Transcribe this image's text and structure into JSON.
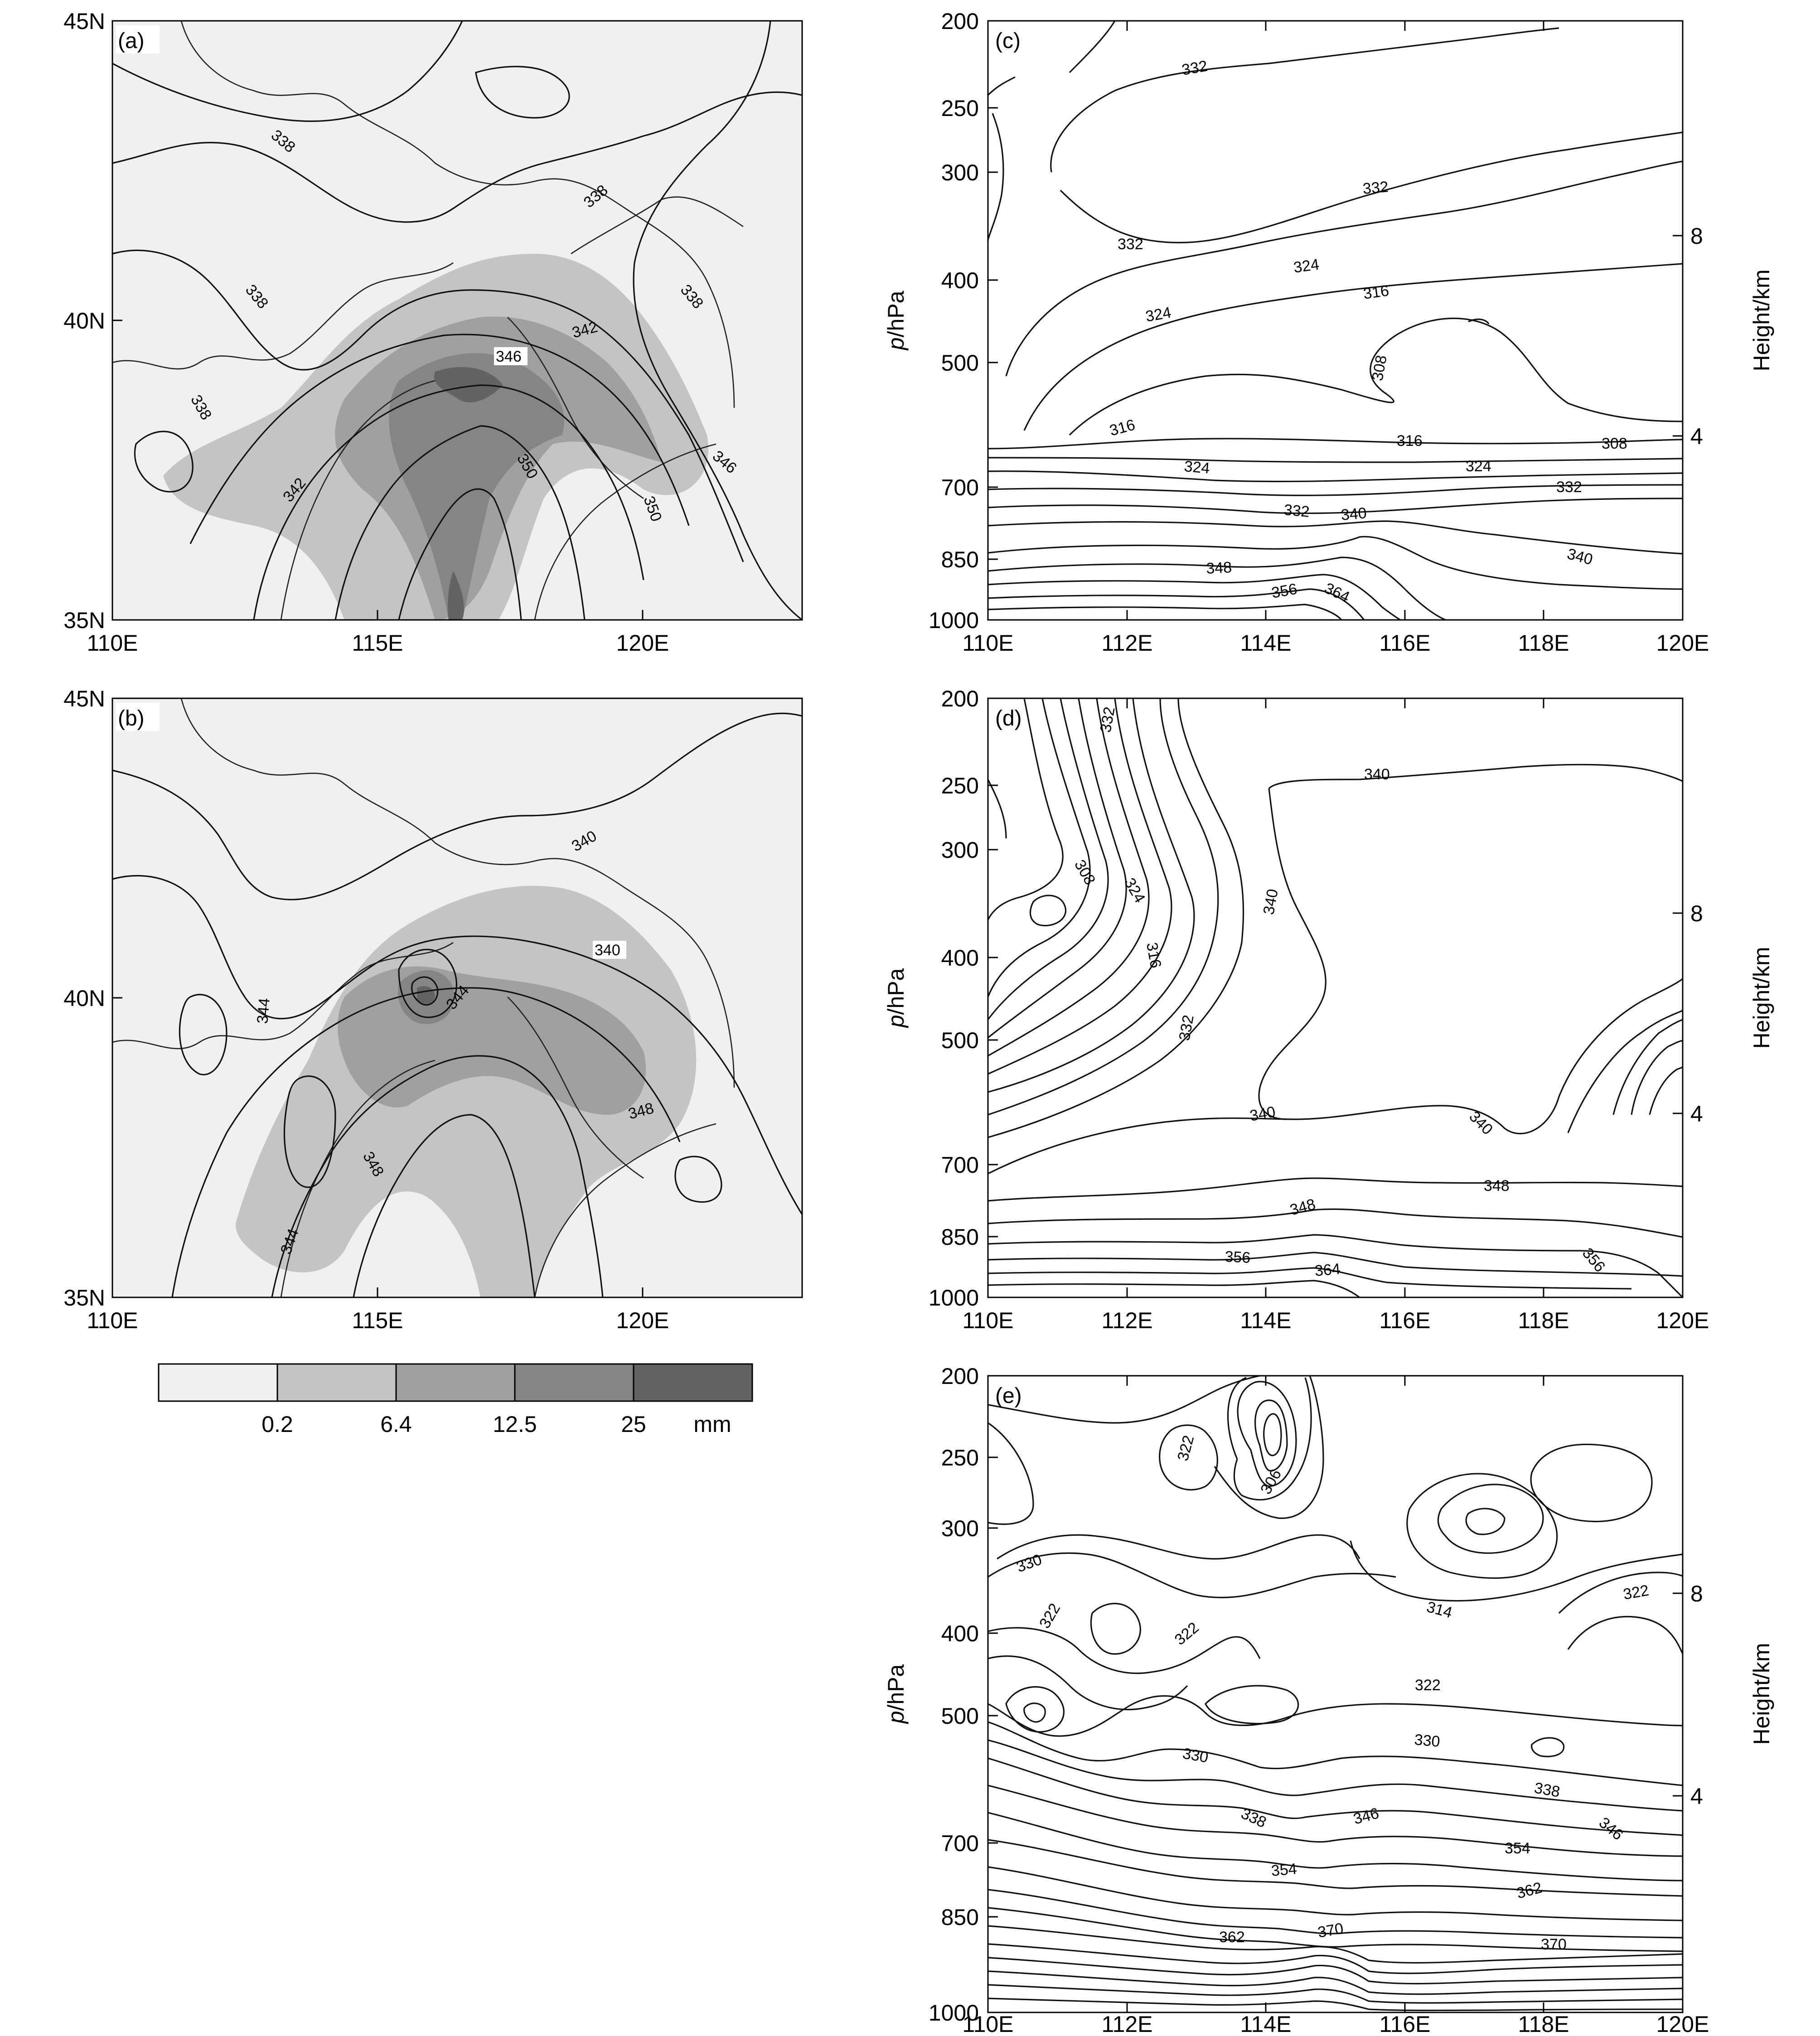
{
  "panels": {
    "a": {
      "label": "(a)",
      "lat_ticks": [
        "45N",
        "40N",
        "35N"
      ],
      "lon_ticks": [
        "110E",
        "115E",
        "120E"
      ],
      "contour_labels": [
        "338",
        "338",
        "338",
        "338",
        "338",
        "342",
        "346",
        "342",
        "350",
        "350",
        "346"
      ]
    },
    "b": {
      "label": "(b)",
      "lat_ticks": [
        "45N",
        "40N",
        "35N"
      ],
      "lon_ticks": [
        "110E",
        "115E",
        "120E"
      ],
      "contour_labels": [
        "340",
        "340",
        "344",
        "344",
        "348",
        "348",
        "344"
      ]
    },
    "c": {
      "label": "(c)",
      "contour_labels": [
        "332",
        "332",
        "332",
        "324",
        "316",
        "324",
        "308",
        "316",
        "316",
        "308",
        "324",
        "324",
        "332",
        "332",
        "340",
        "340",
        "348",
        "356",
        "364"
      ]
    },
    "d": {
      "label": "(d)",
      "contour_labels": [
        "332",
        "308",
        "324",
        "316",
        "332",
        "340",
        "340",
        "340",
        "340",
        "348",
        "348",
        "356",
        "364",
        "356"
      ]
    },
    "e": {
      "label": "(e)",
      "contour_labels": [
        "322",
        "306",
        "330",
        "322",
        "322",
        "314",
        "322",
        "322",
        "330",
        "330",
        "338",
        "346",
        "338",
        "346",
        "354",
        "354",
        "362",
        "370",
        "362",
        "370"
      ]
    }
  },
  "cross_section_axes": {
    "y_label": "p/hPa",
    "y_label_italic": "p",
    "y_label_rest": "/hPa",
    "y_ticks": [
      "200",
      "250",
      "300",
      "400",
      "500",
      "700",
      "850",
      "1000"
    ],
    "right_label": "Height/km",
    "right_ticks": [
      "8",
      "4"
    ],
    "x_ticks": [
      "110E",
      "112E",
      "114E",
      "116E",
      "118E",
      "120E"
    ]
  },
  "colorbar": {
    "ticks": [
      "0.2",
      "6.4",
      "12.5",
      "25"
    ],
    "unit": "mm",
    "colors": [
      "#f0f0f0",
      "#c4c4c4",
      "#a0a0a0",
      "#858585",
      "#636363"
    ]
  },
  "chart_data": [
    {
      "type": "heatmap",
      "panel": "(a)",
      "description_fields": "precipitation shading with theta-e contours",
      "x": [
        "110E",
        "115E",
        "120E"
      ],
      "y": [
        "35N",
        "40N",
        "45N"
      ],
      "xlim": [
        110,
        123
      ],
      "ylim": [
        35,
        45
      ],
      "contour_levels": [
        338,
        342,
        346,
        350
      ]
    },
    {
      "type": "heatmap",
      "panel": "(b)",
      "x": [
        "110E",
        "115E",
        "120E"
      ],
      "y": [
        "35N",
        "40N",
        "45N"
      ],
      "xlim": [
        110,
        123
      ],
      "ylim": [
        35,
        45
      ],
      "contour_levels": [
        340,
        344,
        348
      ]
    },
    {
      "type": "line",
      "panel": "(c)",
      "xlim": [
        110,
        120
      ],
      "ylim": [
        1000,
        200
      ],
      "contour_levels": [
        308,
        316,
        324,
        332,
        340,
        348,
        356,
        364
      ]
    },
    {
      "type": "line",
      "panel": "(d)",
      "xlim": [
        110,
        120
      ],
      "ylim": [
        1000,
        200
      ],
      "contour_levels": [
        308,
        316,
        324,
        332,
        340,
        348,
        356,
        364
      ]
    },
    {
      "type": "line",
      "panel": "(e)",
      "xlim": [
        110,
        120
      ],
      "ylim": [
        1000,
        200
      ],
      "contour_levels": [
        306,
        314,
        322,
        330,
        338,
        346,
        354,
        362,
        370
      ]
    }
  ]
}
